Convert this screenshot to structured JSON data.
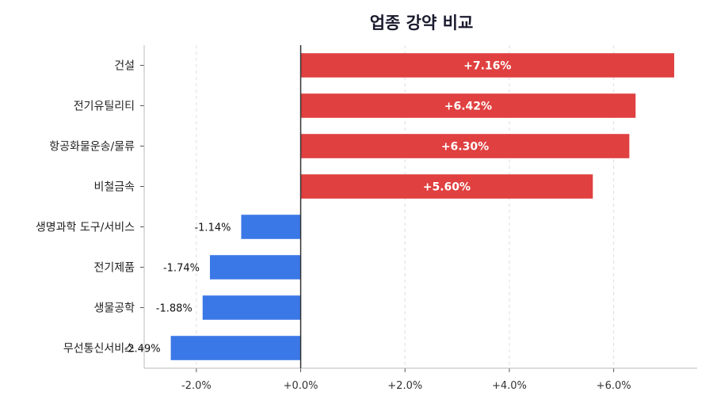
{
  "chart_data": {
    "type": "bar",
    "orientation": "horizontal",
    "title": "업종 강약 비교",
    "xlabel": "",
    "ylabel": "",
    "categories": [
      "건설",
      "전기유틸리티",
      "항공화물운송/물류",
      "비철금속",
      "생명과학 도구/서비스",
      "전기제품",
      "생물공학",
      "무선통신서비스"
    ],
    "values": [
      7.16,
      6.42,
      6.3,
      5.6,
      -1.14,
      -1.74,
      -1.88,
      -2.49
    ],
    "value_labels": [
      "+7.16%",
      "+6.42%",
      "+6.30%",
      "+5.60%",
      "-1.14%",
      "-1.74%",
      "-1.88%",
      "-2.49%"
    ],
    "xlim": [
      -3.0,
      7.6
    ],
    "xticks": [
      -2,
      0,
      2,
      4,
      6
    ],
    "xtick_labels": [
      "-2.0%",
      "+0.0%",
      "+2.0%",
      "+4.0%",
      "+6.0%"
    ],
    "grid": "vertical dashed",
    "legend": "none",
    "colors": {
      "positive": "#e04040",
      "negative": "#3b78e7",
      "zero_line": "#333333",
      "grid": "#dddddd"
    }
  }
}
